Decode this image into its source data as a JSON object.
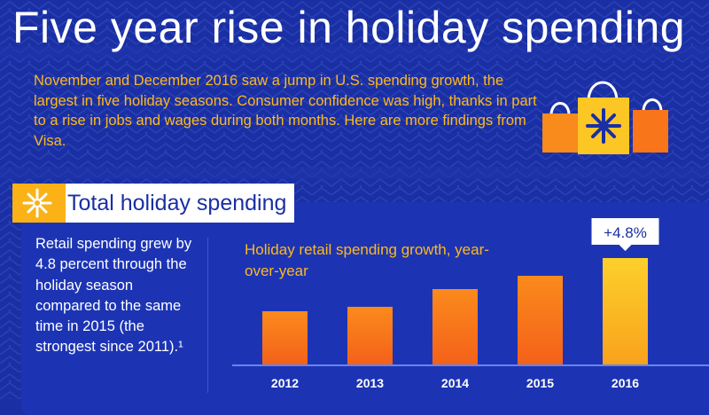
{
  "header": {
    "title": "Five year rise in holiday spending",
    "intro": "November and December 2016 saw a jump in U.S. spending growth, the largest in five holiday seasons. Consumer confidence was high, thanks in part to a rise in jobs and wages during both months. Here are more findings from Visa."
  },
  "section": {
    "label": "Total holiday spending",
    "description": "Retail spending grew by 4.8 percent through the holiday season compared to the same time in 2015 (the strongest since 2011).¹"
  },
  "colors": {
    "background": "#1a2fa3",
    "accent": "#ffb81c",
    "bar_orange": "#f9751a",
    "bar_highlight": "#fcc625",
    "text": "#ffffff"
  },
  "icons": [
    "snowflake-icon",
    "shopping-bags-icon"
  ],
  "chart_data": {
    "type": "bar",
    "title": "Holiday retail spending growth, year-over-year",
    "categories": [
      "2012",
      "2013",
      "2014",
      "2015",
      "2016"
    ],
    "values": [
      2.4,
      2.6,
      3.4,
      4.0,
      4.8
    ],
    "value_unit": "%",
    "labeled_value": "+4.8%",
    "highlight_index": 4,
    "ylim": [
      0,
      5
    ],
    "grid": false,
    "legend": "none"
  }
}
